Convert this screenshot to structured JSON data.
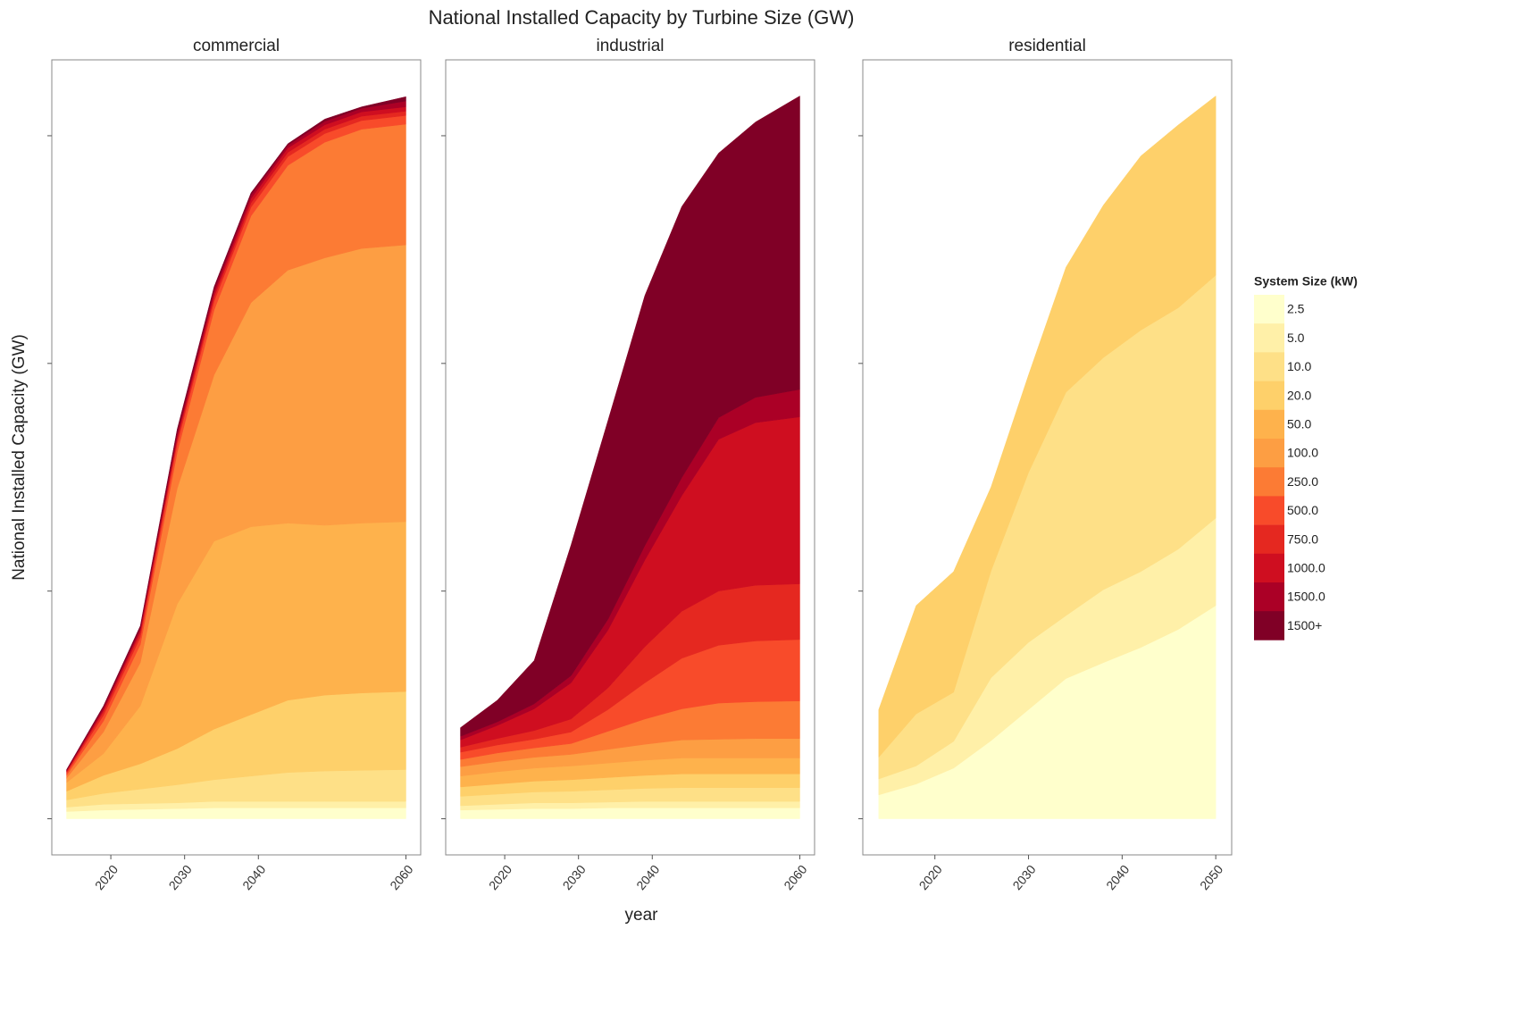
{
  "chart_data": {
    "type": "area",
    "title": "National Installed Capacity by Turbine Size (GW)",
    "x_label": "year",
    "y_label": "National Installed Capacity (GW)",
    "ylim": [
      -5,
      105
    ],
    "yticks": [
      0,
      31.5,
      63,
      94.5
    ],
    "legend": {
      "title": "System Size (kW)",
      "names": [
        "2.5",
        "5.0",
        "10.0",
        "20.0",
        "50.0",
        "100.0",
        "250.0",
        "500.0",
        "750.0",
        "1000.0",
        "1500.0",
        "1500+"
      ],
      "colors": [
        "#ffffcc",
        "#fff0a8",
        "#fee087",
        "#fed06a",
        "#feb24c",
        "#fd9e43",
        "#fc7b34",
        "#f84b2a",
        "#e52820",
        "#cf0e20",
        "#ab0026",
        "#800026"
      ]
    },
    "panels": [
      {
        "title": "commercial",
        "x": [
          2014,
          2019,
          2024,
          2029,
          2034,
          2039,
          2044,
          2049,
          2054,
          2060
        ],
        "xlim": [
          2012,
          2062
        ],
        "xticks": [
          2020,
          2030,
          2040,
          2060
        ],
        "series": [
          {
            "values": [
              1.0,
              1.2,
              1.3,
              1.4,
              1.5,
              1.5,
              1.5,
              1.5,
              1.5,
              1.5
            ]
          },
          {
            "values": [
              0.6,
              0.8,
              0.8,
              0.8,
              0.9,
              0.9,
              0.9,
              0.9,
              0.9,
              0.9
            ]
          },
          {
            "values": [
              1.0,
              1.5,
              2,
              2.5,
              3,
              3.5,
              4,
              4.2,
              4.3,
              4.4
            ]
          },
          {
            "values": [
              1.2,
              2.5,
              3.5,
              5,
              7,
              8.5,
              10,
              10.5,
              10.7,
              10.8
            ]
          },
          {
            "values": [
              1.2,
              3.0,
              8,
              20,
              26,
              26,
              24.5,
              23.5,
              23.5,
              23.5
            ]
          },
          {
            "values": [
              0.6,
              3.0,
              6,
              16,
              23,
              31,
              35,
              37,
              38,
              38.3
            ]
          },
          {
            "values": [
              0.4,
              1.5,
              2.5,
              5,
              9,
              12,
              14.5,
              16,
              16.5,
              16.7
            ]
          },
          {
            "values": [
              0.3,
              0.8,
              1,
              1.2,
              1.2,
              1.2,
              1.2,
              1.2,
              1.2,
              1.2
            ]
          },
          {
            "values": [
              0.2,
              0.5,
              0.6,
              0.6,
              0.6,
              0.6,
              0.6,
              0.6,
              0.6,
              0.6
            ]
          },
          {
            "values": [
              0.1,
              0.3,
              0.4,
              0.4,
              0.5,
              0.6,
              0.6,
              0.6,
              0.6,
              0.6
            ]
          },
          {
            "values": [
              0.1,
              0.3,
              0.3,
              0.5,
              0.5,
              0.5,
              0.4,
              0.5,
              0.5,
              0.8
            ]
          },
          {
            "values": [
              0.1,
              0.2,
              0.3,
              0.5,
              0.4,
              0.3,
              0.2,
              0.3,
              0.2,
              0.6
            ]
          }
        ]
      },
      {
        "title": "industrial",
        "x": [
          2014,
          2019,
          2024,
          2029,
          2034,
          2039,
          2044,
          2049,
          2054,
          2060
        ],
        "xlim": [
          2012,
          2062
        ],
        "xticks": [
          2020,
          2030,
          2040,
          2060
        ],
        "series": [
          {
            "values": [
              1.2,
              1.3,
              1.4,
              1.4,
              1.5,
              1.5,
              1.5,
              1.5,
              1.5,
              1.5
            ]
          },
          {
            "values": [
              0.6,
              0.7,
              0.8,
              0.8,
              0.8,
              0.9,
              0.9,
              0.9,
              0.9,
              0.9
            ]
          },
          {
            "values": [
              1.3,
              1.4,
              1.5,
              1.6,
              1.7,
              1.8,
              1.9,
              1.9,
              1.9,
              1.9
            ]
          },
          {
            "values": [
              1.3,
              1.4,
              1.5,
              1.6,
              1.7,
              1.8,
              1.9,
              1.9,
              1.9,
              1.9
            ]
          },
          {
            "values": [
              1.5,
              1.7,
              1.8,
              1.9,
              2,
              2.1,
              2.2,
              2.2,
              2.2,
              2.2
            ]
          },
          {
            "values": [
              1.3,
              1.4,
              1.5,
              1.6,
              1.9,
              2.2,
              2.5,
              2.6,
              2.7,
              2.7
            ]
          },
          {
            "values": [
              1.0,
              1.2,
              1.3,
              1.5,
              2.5,
              3.5,
              4.3,
              5,
              5.1,
              5.2
            ]
          },
          {
            "values": [
              1.0,
              1.1,
              1.2,
              1.6,
              3,
              5,
              7,
              8,
              8.4,
              8.5
            ]
          },
          {
            "values": [
              0.7,
              0.9,
              1.2,
              1.8,
              3,
              5,
              6.5,
              7.5,
              7.7,
              7.7
            ]
          },
          {
            "values": [
              1.0,
              1.8,
              3.0,
              5,
              8,
              12,
              16,
              21,
              22.5,
              23.1
            ]
          },
          {
            "values": [
              0.5,
              0.5,
              0.7,
              1,
              1.5,
              2,
              2.5,
              3,
              3.5,
              3.8
            ]
          },
          {
            "values": [
              1.2,
              3.0,
              6.0,
              18.1,
              27.5,
              34.6,
              37.5,
              36.6,
              38.1,
              40.6
            ]
          }
        ]
      },
      {
        "title": "residential",
        "x": [
          2014,
          2018,
          2022,
          2026,
          2030,
          2034,
          2038,
          2042,
          2046,
          2050
        ],
        "xlim": [
          2012.3,
          2051.7
        ],
        "xticks": [
          2020,
          2030,
          2040,
          2050
        ],
        "series": [
          {
            "values": [
              3.3,
              4.8,
              7.0,
              10.8,
              15.1,
              19.4,
              21.6,
              23.7,
              26.2,
              29.5
            ]
          },
          {
            "values": [
              2.2,
              2.5,
              3.7,
              8.7,
              9.3,
              8.7,
              10.1,
              10.5,
              11.1,
              12.1
            ]
          },
          {
            "values": [
              3.0,
              7.2,
              6.8,
              14.8,
              23.5,
              30.9,
              32.1,
              33.4,
              33.4,
              33.6
            ]
          },
          {
            "values": [
              6.6,
              15.0,
              16.7,
              11.6,
              13.5,
              17.3,
              21.1,
              24.1,
              25.3,
              24.8
            ]
          }
        ]
      }
    ]
  }
}
